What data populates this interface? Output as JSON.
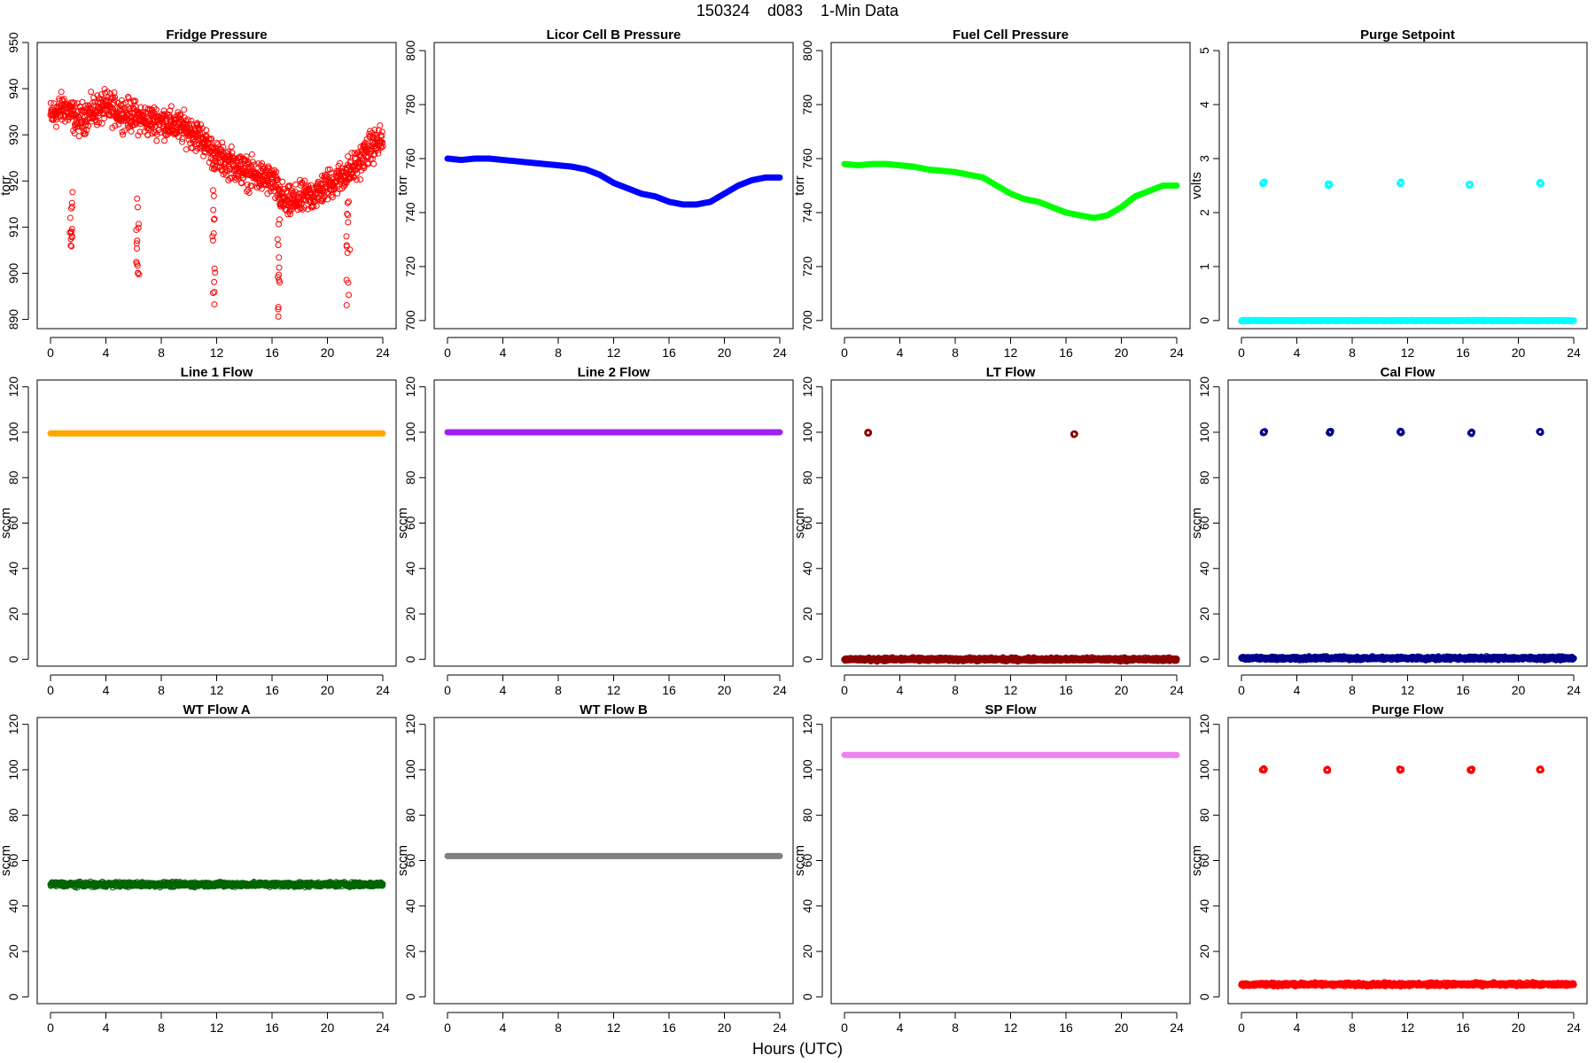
{
  "figure": {
    "title": "150324    d083    1-Min Data",
    "xlabel": "Hours (UTC)"
  },
  "chart_data": [
    {
      "type": "scatter",
      "title": "Fridge Pressure",
      "ylabel": "torr",
      "xlim": [
        0,
        24
      ],
      "ylim": [
        888,
        950
      ],
      "xticks": [
        0,
        4,
        8,
        12,
        16,
        20,
        24
      ],
      "yticks": [
        890,
        900,
        910,
        920,
        930,
        940,
        950
      ],
      "color": "#ff0000",
      "marker": "open-circle",
      "series": [
        {
          "x": [
            0,
            1,
            2,
            3,
            4,
            5,
            6,
            7,
            8,
            9,
            10,
            11,
            12,
            13,
            14,
            15,
            16,
            17,
            18,
            19,
            20,
            21,
            22,
            23,
            24
          ],
          "y": [
            934,
            936,
            933,
            935,
            936,
            935,
            934,
            933,
            933,
            932,
            931,
            929,
            925,
            924,
            922,
            921,
            920,
            915,
            916,
            917,
            919,
            921,
            923,
            927,
            929
          ],
          "spread": 5
        }
      ],
      "dips": [
        {
          "x": 1.5,
          "y": 904
        },
        {
          "x": 6.3,
          "y": 899
        },
        {
          "x": 11.8,
          "y": 892
        },
        {
          "x": 16.5,
          "y": 889
        },
        {
          "x": 21.5,
          "y": 893
        }
      ]
    },
    {
      "type": "line",
      "title": "Licor Cell B Pressure",
      "ylabel": "torr",
      "xlim": [
        0,
        24
      ],
      "ylim": [
        697,
        803
      ],
      "xticks": [
        0,
        4,
        8,
        12,
        16,
        20,
        24
      ],
      "yticks": [
        700,
        720,
        740,
        760,
        780,
        800
      ],
      "color": "#0000ff",
      "series": [
        {
          "x": [
            0,
            1,
            2,
            3,
            4,
            5,
            6,
            7,
            8,
            9,
            10,
            11,
            12,
            13,
            14,
            15,
            16,
            17,
            18,
            19,
            20,
            21,
            22,
            23,
            24
          ],
          "y": [
            760,
            759.5,
            760,
            760,
            759.5,
            759,
            758.5,
            758,
            757.5,
            757,
            756,
            754,
            751,
            749,
            747,
            746,
            744,
            743,
            743,
            744,
            747,
            750,
            752,
            753,
            753
          ]
        }
      ]
    },
    {
      "type": "line",
      "title": "Fuel Cell Pressure",
      "ylabel": "torr",
      "xlim": [
        0,
        24
      ],
      "ylim": [
        697,
        803
      ],
      "xticks": [
        0,
        4,
        8,
        12,
        16,
        20,
        24
      ],
      "yticks": [
        700,
        720,
        740,
        760,
        780,
        800
      ],
      "color": "#00ff00",
      "series": [
        {
          "x": [
            0,
            1,
            2,
            3,
            4,
            5,
            6,
            7,
            8,
            9,
            10,
            11,
            12,
            13,
            14,
            15,
            16,
            17,
            18,
            19,
            20,
            21,
            22,
            23,
            24
          ],
          "y": [
            758,
            757.5,
            758,
            758,
            757.5,
            757,
            756,
            755.5,
            755,
            754,
            753,
            750,
            747,
            745,
            744,
            742,
            740,
            739,
            738,
            739,
            742,
            746,
            748,
            750,
            750
          ]
        }
      ]
    },
    {
      "type": "scatter",
      "title": "Purge Setpoint",
      "ylabel": "volts",
      "xlim": [
        0,
        24
      ],
      "ylim": [
        -0.15,
        5.15
      ],
      "xticks": [
        0,
        4,
        8,
        12,
        16,
        20,
        24
      ],
      "yticks": [
        0,
        1,
        2,
        3,
        4,
        5
      ],
      "color": "#00ffff",
      "baseline": 0,
      "clusters": [
        {
          "x": 1.6,
          "y": 2.55
        },
        {
          "x": 6.3,
          "y": 2.52
        },
        {
          "x": 11.5,
          "y": 2.55
        },
        {
          "x": 16.5,
          "y": 2.52
        },
        {
          "x": 21.6,
          "y": 2.55
        }
      ]
    },
    {
      "type": "line",
      "title": "Line 1 Flow",
      "ylabel": "sccm",
      "xlim": [
        0,
        24
      ],
      "ylim": [
        -3,
        123
      ],
      "xticks": [
        0,
        4,
        8,
        12,
        16,
        20,
        24
      ],
      "yticks": [
        0,
        20,
        40,
        60,
        80,
        100,
        120
      ],
      "color": "#ffa500",
      "series": [
        {
          "x": [
            0,
            24
          ],
          "y": [
            99.5,
            99.5
          ]
        }
      ]
    },
    {
      "type": "line",
      "title": "Line 2 Flow",
      "ylabel": "sccm",
      "xlim": [
        0,
        24
      ],
      "ylim": [
        -3,
        123
      ],
      "xticks": [
        0,
        4,
        8,
        12,
        16,
        20,
        24
      ],
      "yticks": [
        0,
        20,
        40,
        60,
        80,
        100,
        120
      ],
      "color": "#a020f0",
      "series": [
        {
          "x": [
            0,
            24
          ],
          "y": [
            100,
            100
          ]
        }
      ]
    },
    {
      "type": "scatter",
      "title": "LT Flow",
      "ylabel": "sccm",
      "xlim": [
        0,
        24
      ],
      "ylim": [
        -3,
        123
      ],
      "xticks": [
        0,
        4,
        8,
        12,
        16,
        20,
        24
      ],
      "yticks": [
        0,
        20,
        40,
        60,
        80,
        100,
        120
      ],
      "color": "#8b0000",
      "baseline": 0,
      "clusters": [
        {
          "x": 1.7,
          "y": 100
        },
        {
          "x": 16.6,
          "y": 99
        }
      ]
    },
    {
      "type": "scatter",
      "title": "Cal Flow",
      "ylabel": "sccm",
      "xlim": [
        0,
        24
      ],
      "ylim": [
        -3,
        123
      ],
      "xticks": [
        0,
        4,
        8,
        12,
        16,
        20,
        24
      ],
      "yticks": [
        0,
        20,
        40,
        60,
        80,
        100,
        120
      ],
      "color": "#00008b",
      "baseline": 0.5,
      "clusters": [
        {
          "x": 1.6,
          "y": 100
        },
        {
          "x": 6.4,
          "y": 100
        },
        {
          "x": 11.5,
          "y": 100
        },
        {
          "x": 16.6,
          "y": 100
        },
        {
          "x": 21.6,
          "y": 100
        }
      ]
    },
    {
      "type": "scatter",
      "title": "WT Flow A",
      "ylabel": "sccm",
      "xlim": [
        0,
        24
      ],
      "ylim": [
        -3,
        123
      ],
      "xticks": [
        0,
        4,
        8,
        12,
        16,
        20,
        24
      ],
      "yticks": [
        0,
        20,
        40,
        60,
        80,
        100,
        120
      ],
      "color": "#006400",
      "series": [
        {
          "x": [
            0,
            24
          ],
          "y": [
            49.5,
            49.5
          ],
          "spread": 1.5
        }
      ]
    },
    {
      "type": "line",
      "title": "WT Flow B",
      "ylabel": "sccm",
      "xlim": [
        0,
        24
      ],
      "ylim": [
        -3,
        123
      ],
      "xticks": [
        0,
        4,
        8,
        12,
        16,
        20,
        24
      ],
      "yticks": [
        0,
        20,
        40,
        60,
        80,
        100,
        120
      ],
      "color": "#808080",
      "series": [
        {
          "x": [
            0,
            24
          ],
          "y": [
            62,
            62
          ]
        }
      ]
    },
    {
      "type": "line",
      "title": "SP Flow",
      "ylabel": "sccm",
      "xlim": [
        0,
        24
      ],
      "ylim": [
        -3,
        123
      ],
      "xticks": [
        0,
        4,
        8,
        12,
        16,
        20,
        24
      ],
      "yticks": [
        0,
        20,
        40,
        60,
        80,
        100,
        120
      ],
      "color": "#ee82ee",
      "series": [
        {
          "x": [
            0,
            24
          ],
          "y": [
            106.5,
            106.5
          ]
        }
      ]
    },
    {
      "type": "scatter",
      "title": "Purge Flow",
      "ylabel": "sccm",
      "xlim": [
        0,
        24
      ],
      "ylim": [
        -3,
        123
      ],
      "xticks": [
        0,
        4,
        8,
        12,
        16,
        20,
        24
      ],
      "yticks": [
        0,
        20,
        40,
        60,
        80,
        100,
        120
      ],
      "color": "#ff0000",
      "baseline": 5.5,
      "clusters": [
        {
          "x": 1.6,
          "y": 100
        },
        {
          "x": 6.2,
          "y": 100
        },
        {
          "x": 11.5,
          "y": 100
        },
        {
          "x": 16.6,
          "y": 100
        },
        {
          "x": 21.6,
          "y": 100
        }
      ]
    }
  ]
}
